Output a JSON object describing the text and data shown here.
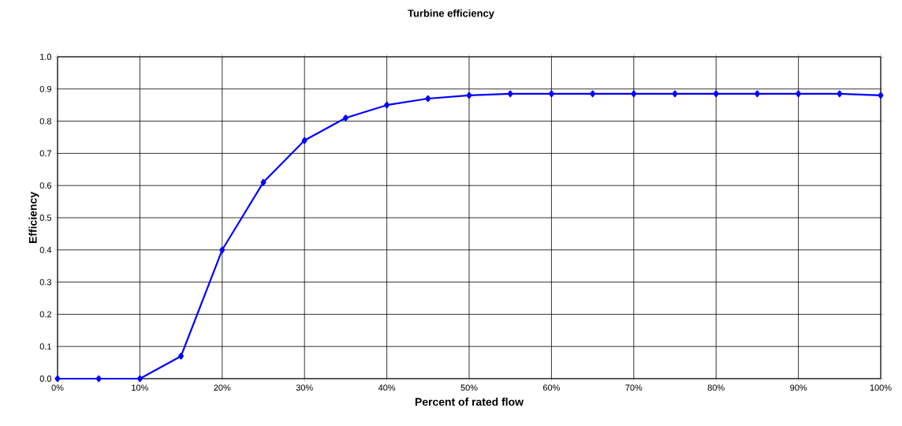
{
  "chart_data": {
    "type": "line",
    "title": "Turbine efficiency",
    "xlabel": "Percent of rated flow",
    "ylabel": "Efficiency",
    "x": [
      0,
      5,
      10,
      15,
      20,
      25,
      30,
      35,
      40,
      45,
      50,
      55,
      60,
      65,
      70,
      75,
      80,
      85,
      90,
      95,
      100
    ],
    "series": [
      {
        "color": "#0000ff",
        "values": [
          0,
          0,
          0,
          0.07,
          0.4,
          0.61,
          0.74,
          0.81,
          0.85,
          0.87,
          0.88,
          0.885,
          0.885,
          0.885,
          0.885,
          0.885,
          0.885,
          0.885,
          0.885,
          0.885,
          0.88
        ]
      }
    ],
    "xlim": [
      0,
      100
    ],
    "ylim": [
      0,
      1
    ],
    "xticks": [
      {
        "value": 0,
        "label": "0%"
      },
      {
        "value": 10,
        "label": "10%"
      },
      {
        "value": 20,
        "label": "20%"
      },
      {
        "value": 30,
        "label": "30%"
      },
      {
        "value": 40,
        "label": "40%"
      },
      {
        "value": 50,
        "label": "50%"
      },
      {
        "value": 60,
        "label": "60%"
      },
      {
        "value": 70,
        "label": "70%"
      },
      {
        "value": 80,
        "label": "80%"
      },
      {
        "value": 90,
        "label": "90%"
      },
      {
        "value": 100,
        "label": "100%"
      }
    ],
    "yticks": [
      {
        "value": 0,
        "label": "0.0"
      },
      {
        "value": 0.1,
        "label": "0.1"
      },
      {
        "value": 0.2,
        "label": "0.2"
      },
      {
        "value": 0.3,
        "label": "0.3"
      },
      {
        "value": 0.4,
        "label": "0.4"
      },
      {
        "value": 0.5,
        "label": "0.5"
      },
      {
        "value": 0.6,
        "label": "0.6"
      },
      {
        "value": 0.7,
        "label": "0.7"
      },
      {
        "value": 0.8,
        "label": "0.8"
      },
      {
        "value": 0.9,
        "label": "0.9"
      },
      {
        "value": 1,
        "label": "1.0"
      }
    ],
    "grid": true,
    "marker": "diamond",
    "line_style": "solid"
  }
}
